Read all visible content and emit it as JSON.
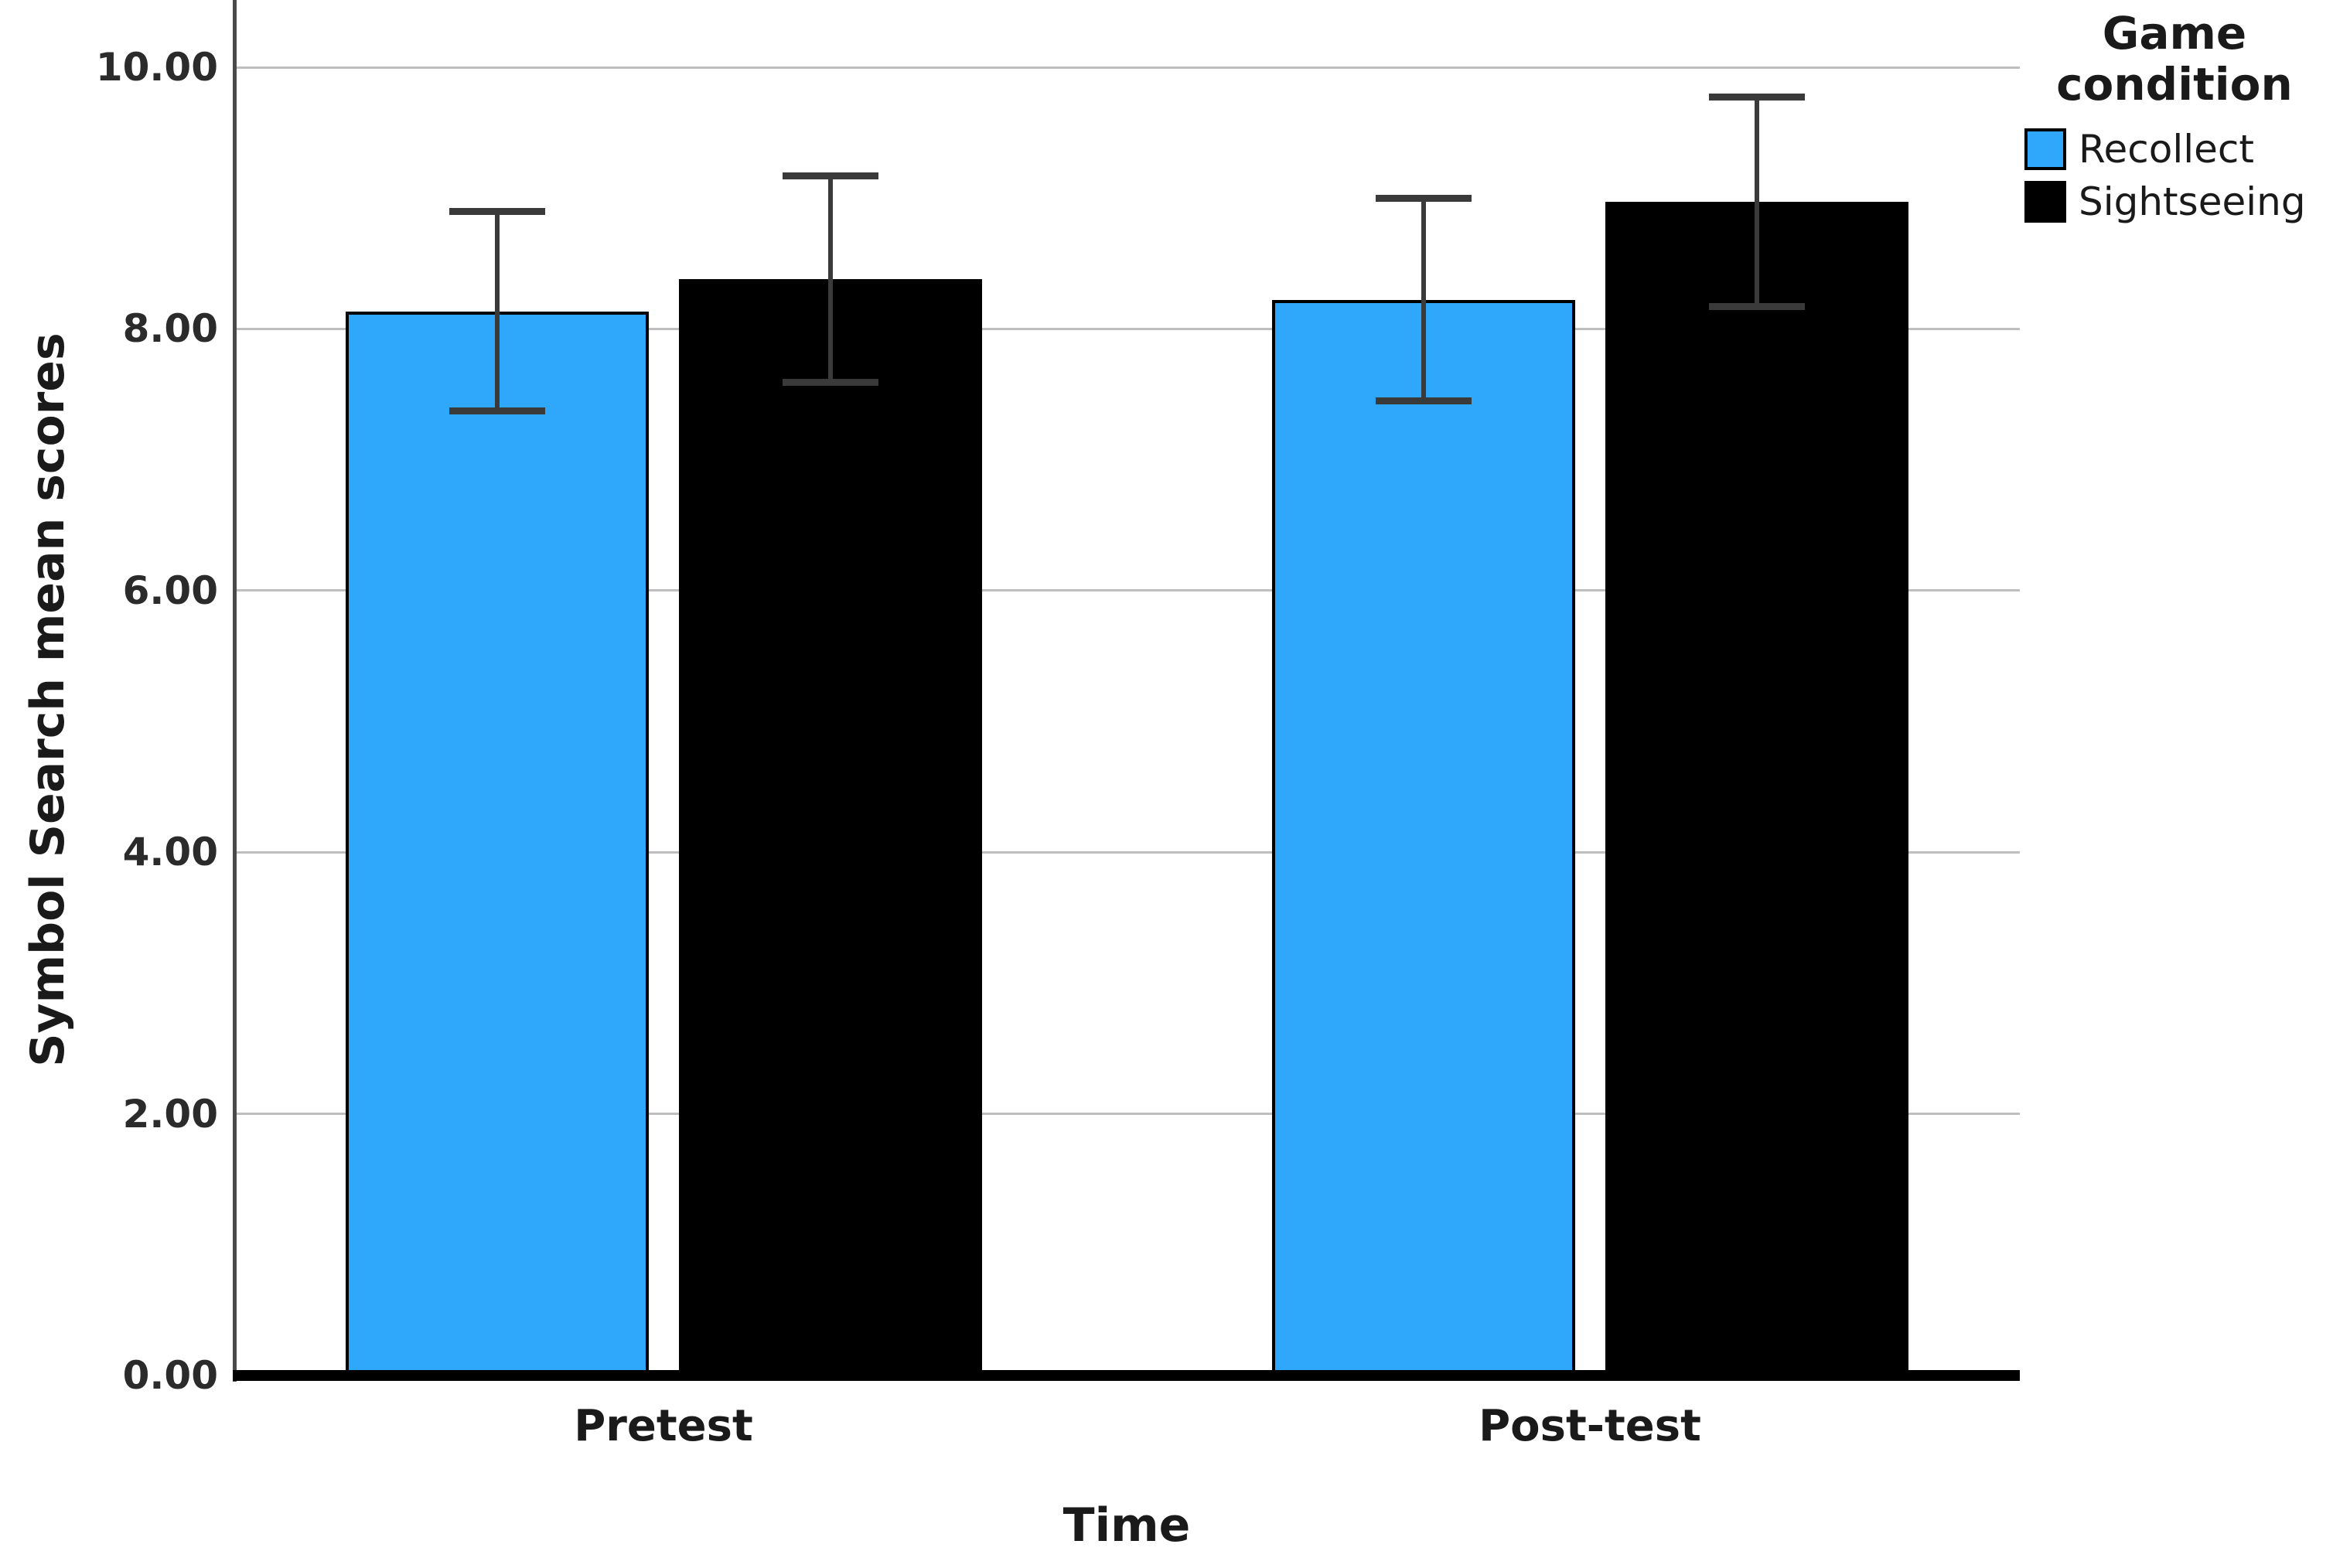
{
  "figure": {
    "background_color": "#ffffff",
    "text_color": "#1a1a1a",
    "gridline_color": "#bfbfbf",
    "axis_line_color": "#4a4a4a",
    "baseline_color": "#000000",
    "error_bar_color": "#3a3a3a"
  },
  "chart_data": {
    "type": "bar",
    "title": "",
    "categories": [
      "Pretest",
      "Post-test"
    ],
    "series": [
      {
        "name": "Recollect",
        "color": "#2fa8fb",
        "values": [
          8.13,
          8.22
        ],
        "error_upper": [
          0.77,
          0.78
        ],
        "error_lower": [
          0.76,
          0.77
        ]
      },
      {
        "name": "Sightseeing",
        "color": "#000000",
        "values": [
          8.38,
          8.97
        ],
        "error_upper": [
          0.79,
          0.8
        ],
        "error_lower": [
          0.79,
          0.8
        ]
      }
    ],
    "xlabel": "Time",
    "ylabel": "Symbol Search mean scores",
    "ylim": [
      0,
      10.5
    ],
    "yticks": [
      0,
      2,
      4,
      6,
      8,
      10
    ],
    "ytick_labels": [
      "0.00",
      "2.00",
      "4.00",
      "6.00",
      "8.00",
      "10.00"
    ],
    "grid": "horizontal",
    "legend_title": "Game condition",
    "legend_position": "top-right-outside",
    "error_bars": "both-directions-caps"
  }
}
